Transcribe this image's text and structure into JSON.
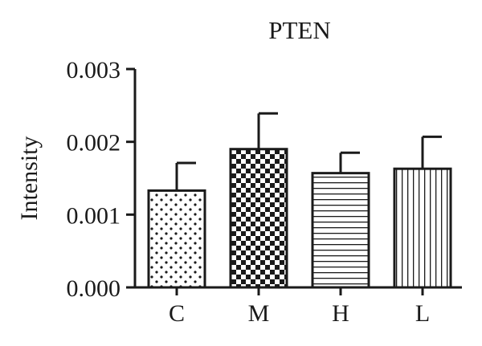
{
  "chart_data": {
    "type": "bar",
    "title": "PTEN",
    "xlabel": "",
    "ylabel": "Intensity",
    "categories": [
      "C",
      "M",
      "H",
      "L"
    ],
    "values": [
      0.00133,
      0.0019,
      0.00157,
      0.00163
    ],
    "errors": [
      0.00038,
      0.00049,
      0.00028,
      0.00044
    ],
    "ylim": [
      0,
      0.003
    ],
    "yticks": [
      "0.000",
      "0.001",
      "0.002",
      "0.003"
    ],
    "patterns": [
      "dots",
      "checkerboard",
      "horizontal-lines",
      "vertical-lines"
    ],
    "grid": false,
    "legend": "none",
    "colors": {
      "ink": "#1a1a1a",
      "background": "#ffffff"
    }
  }
}
